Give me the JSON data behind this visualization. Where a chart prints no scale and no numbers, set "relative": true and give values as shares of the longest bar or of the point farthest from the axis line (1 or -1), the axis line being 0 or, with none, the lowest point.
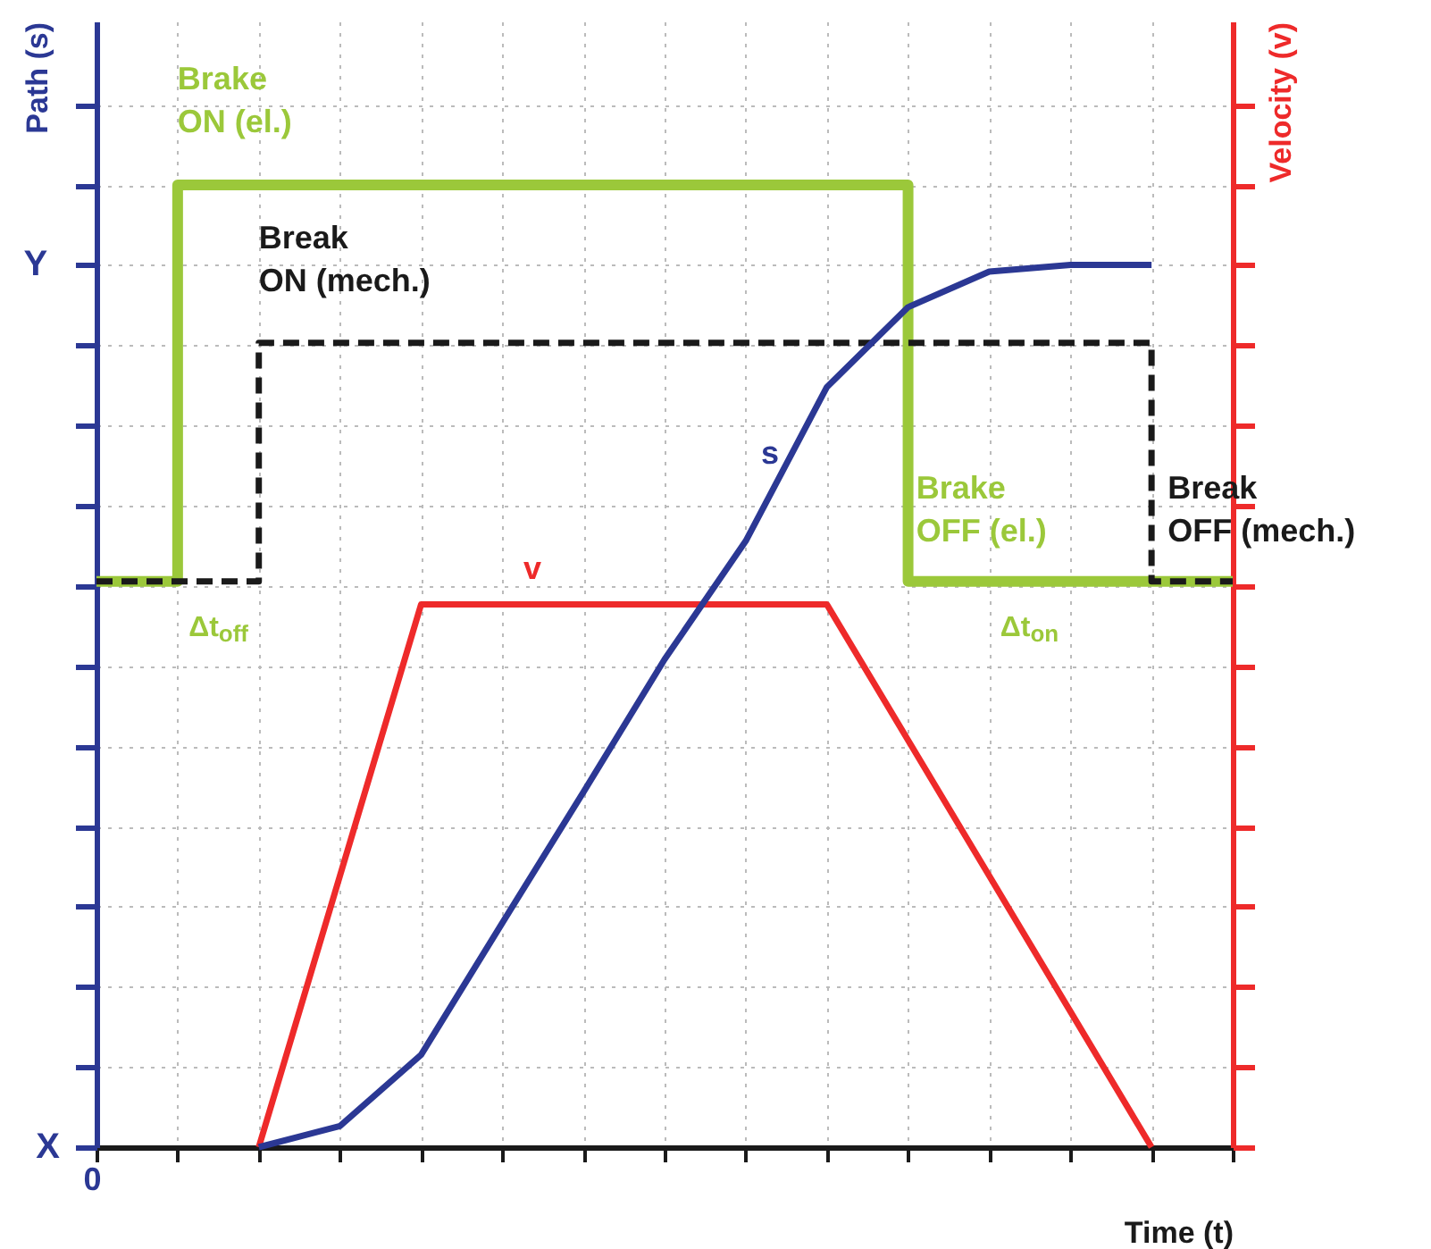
{
  "chart_data": {
    "type": "line",
    "relative": true,
    "xlabel": "Time (t)",
    "ylabel": "Path (s)",
    "y2label": "Velocity (v)",
    "categories": [
      null,
      null,
      null,
      null,
      null,
      null,
      null,
      null,
      null,
      null,
      null,
      null,
      null,
      null,
      null
    ],
    "series": [
      {
        "type": "step",
        "color": "#9bc83a",
        "line_style": "solid",
        "values": [
          0.588,
          1,
          1,
          1,
          1,
          1,
          1,
          1,
          1,
          1,
          0.588,
          0.588,
          0.588,
          0.588,
          0.588
        ]
      },
      {
        "type": "step",
        "color": "#1a1a1a",
        "line_style": "dashed",
        "values": [
          0.588,
          0.588,
          0.836,
          0.836,
          0.836,
          0.836,
          0.836,
          0.836,
          0.836,
          0.836,
          0.836,
          0.836,
          0.836,
          0.588,
          0.588
        ]
      },
      {
        "type": "line",
        "name": "v",
        "color": "#ee2a2a",
        "line_style": "solid",
        "values": [
          null,
          null,
          0,
          0.282,
          0.564,
          0.564,
          0.564,
          0.564,
          0.564,
          0.564,
          0.423,
          0.282,
          0.141,
          0,
          null
        ]
      },
      {
        "type": "line",
        "name": "s",
        "color": "#2b3894",
        "line_style": "solid",
        "values": [
          null,
          null,
          0,
          0.022,
          0.096,
          0.233,
          0.369,
          0.507,
          0.63,
          0.79,
          0.873,
          0.91,
          0.917,
          0.917,
          null
        ]
      }
    ],
    "annotations": [
      "Brake ON (el.)",
      "Break ON (mech.)",
      "Brake OFF (el.)",
      "Break OFF (mech.)",
      "Δt$_{off}$",
      "Δt$_{on}$",
      "Y",
      "X",
      "0"
    ],
    "grid": true
  }
}
